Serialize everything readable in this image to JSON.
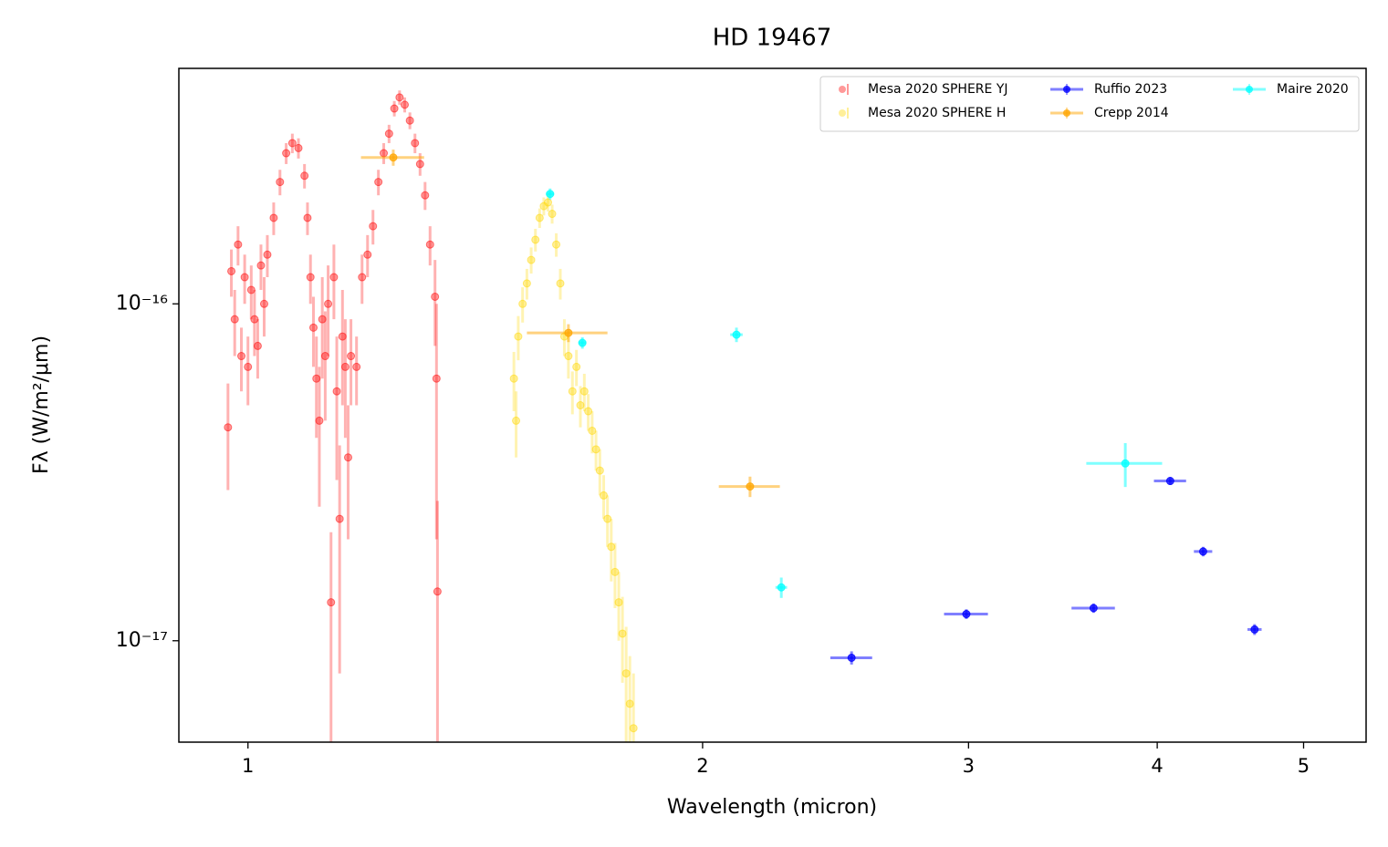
{
  "chart_data": {
    "type": "scatter",
    "title": "HD 19467",
    "x_label": "Wavelength (micron)",
    "y_label": "Fλ (W/m²/μm)",
    "x_scale": "log",
    "y_scale": "log",
    "xlim": [
      0.9,
      5.5
    ],
    "ylim": [
      5e-18,
      5e-16
    ],
    "xticks": [
      1,
      2,
      3,
      4,
      5
    ],
    "yticks": [
      {
        "value": 1e-17,
        "label": "10⁻¹⁷"
      },
      {
        "value": 1e-16,
        "label": "10⁻¹⁶"
      }
    ],
    "legend": "upper right",
    "legend_columns": 3,
    "series": [
      {
        "name": "Mesa 2020 SPHERE YJ",
        "color": "#ff0000",
        "x": [
          0.97,
          0.975,
          0.98,
          0.985,
          0.99,
          0.995,
          1.0,
          1.005,
          1.01,
          1.015,
          1.02,
          1.025,
          1.03,
          1.04,
          1.05,
          1.06,
          1.07,
          1.08,
          1.09,
          1.095,
          1.1,
          1.105,
          1.11,
          1.115,
          1.12,
          1.125,
          1.13,
          1.135,
          1.14,
          1.145,
          1.15,
          1.155,
          1.16,
          1.165,
          1.17,
          1.18,
          1.19,
          1.2,
          1.21,
          1.22,
          1.23,
          1.24,
          1.25,
          1.26,
          1.27,
          1.28,
          1.29,
          1.3,
          1.31,
          1.32,
          1.33,
          1.333,
          1.335
        ],
        "values": [
          4.3e-17,
          1.25e-16,
          9e-17,
          1.5e-16,
          7e-17,
          1.2e-16,
          6.5e-17,
          1.1e-16,
          9e-17,
          7.5e-17,
          1.3e-16,
          1e-16,
          1.4e-16,
          1.8e-16,
          2.3e-16,
          2.8e-16,
          3e-16,
          2.9e-16,
          2.4e-16,
          1.8e-16,
          1.2e-16,
          8.5e-17,
          6e-17,
          4.5e-17,
          9e-17,
          7e-17,
          1e-16,
          1.3e-17,
          1.2e-16,
          5.5e-17,
          2.3e-17,
          8e-17,
          6.5e-17,
          3.5e-17,
          7e-17,
          6.5e-17,
          1.2e-16,
          1.4e-16,
          1.7e-16,
          2.3e-16,
          2.8e-16,
          3.2e-16,
          3.8e-16,
          4.1e-16,
          3.9e-16,
          3.5e-16,
          3e-16,
          2.6e-16,
          2.1e-16,
          1.5e-16,
          1.05e-16,
          6e-17,
          1.4e-17
        ],
        "yerr": [
          1.5e-17,
          2e-17,
          2e-17,
          2e-17,
          1.5e-17,
          2e-17,
          1.5e-17,
          2e-17,
          2e-17,
          1.5e-17,
          2e-17,
          2e-17,
          2e-17,
          2e-17,
          2e-17,
          2e-17,
          2e-17,
          2e-17,
          2e-17,
          2e-17,
          2e-17,
          2e-17,
          2e-17,
          2e-17,
          3e-17,
          2.5e-17,
          3e-17,
          8e-18,
          3e-17,
          2.5e-17,
          1.5e-17,
          3e-17,
          2.5e-17,
          1.5e-17,
          2e-17,
          1.5e-17,
          2e-17,
          2e-17,
          2e-17,
          2e-17,
          2e-17,
          2e-17,
          2e-17,
          2e-17,
          2e-17,
          2e-17,
          2e-17,
          2e-17,
          2e-17,
          2e-17,
          3e-17,
          4e-17,
          1.2e-17
        ]
      },
      {
        "name": "Mesa 2020 SPHERE H",
        "color": "#ffd700",
        "x": [
          1.5,
          1.505,
          1.51,
          1.52,
          1.53,
          1.54,
          1.55,
          1.56,
          1.57,
          1.58,
          1.59,
          1.6,
          1.61,
          1.62,
          1.63,
          1.64,
          1.65,
          1.66,
          1.67,
          1.68,
          1.69,
          1.7,
          1.71,
          1.72,
          1.73,
          1.74,
          1.75,
          1.76,
          1.77,
          1.78,
          1.79,
          1.8
        ],
        "values": [
          6e-17,
          4.5e-17,
          8e-17,
          1e-16,
          1.15e-16,
          1.35e-16,
          1.55e-16,
          1.8e-16,
          1.95e-16,
          2e-16,
          1.85e-16,
          1.5e-16,
          1.15e-16,
          8e-17,
          7e-17,
          5.5e-17,
          6.5e-17,
          5e-17,
          5.5e-17,
          4.8e-17,
          4.2e-17,
          3.7e-17,
          3.2e-17,
          2.7e-17,
          2.3e-17,
          1.9e-17,
          1.6e-17,
          1.3e-17,
          1.05e-17,
          8e-18,
          6.5e-18,
          5.5e-18
        ],
        "yerr": [
          1.2e-17,
          1e-17,
          1.2e-17,
          1.2e-17,
          1.2e-17,
          1.2e-17,
          1.2e-17,
          1.2e-17,
          1.2e-17,
          1.2e-17,
          1.2e-17,
          1.2e-17,
          1.2e-17,
          1e-17,
          1e-17,
          8e-18,
          8e-18,
          7e-18,
          7e-18,
          6e-18,
          6e-18,
          5e-18,
          5e-18,
          4e-18,
          4e-18,
          4e-18,
          3.5e-18,
          3e-18,
          3e-18,
          3e-18,
          2.5e-18,
          2.5e-18
        ]
      },
      {
        "name": "Ruffio 2023",
        "color": "#0000ff",
        "x": [
          2.51,
          2.99,
          3.63,
          4.08,
          4.29,
          4.64
        ],
        "values": [
          8.9e-18,
          1.2e-17,
          1.25e-17,
          2.98e-17,
          1.84e-17,
          1.08e-17
        ],
        "xerr": [
          0.08,
          0.1,
          0.12,
          0.1,
          0.06,
          0.05
        ],
        "yerr": [
          4e-19,
          4e-19,
          4e-19,
          8e-19,
          6e-19,
          4e-19
        ]
      },
      {
        "name": "Crepp 2014",
        "color": "#ffa500",
        "x": [
          1.248,
          1.63,
          2.15
        ],
        "values": [
          2.72e-16,
          8.2e-17,
          2.87e-17
        ],
        "xerr": [
          0.06,
          0.1,
          0.1
        ],
        "yerr": [
          1.5e-17,
          5e-18,
          2e-18
        ]
      },
      {
        "name": "Maire 2020",
        "color": "#00ffff",
        "x": [
          1.585,
          1.665,
          2.106,
          2.255,
          3.81
        ],
        "values": [
          2.12e-16,
          7.66e-17,
          8.1e-17,
          1.44e-17,
          3.36e-17
        ],
        "xerr": [
          0.01,
          0.01,
          0.02,
          0.02,
          0.22
        ],
        "yerr": [
          8e-18,
          3e-18,
          4e-18,
          1e-18,
          5e-18
        ]
      }
    ]
  }
}
